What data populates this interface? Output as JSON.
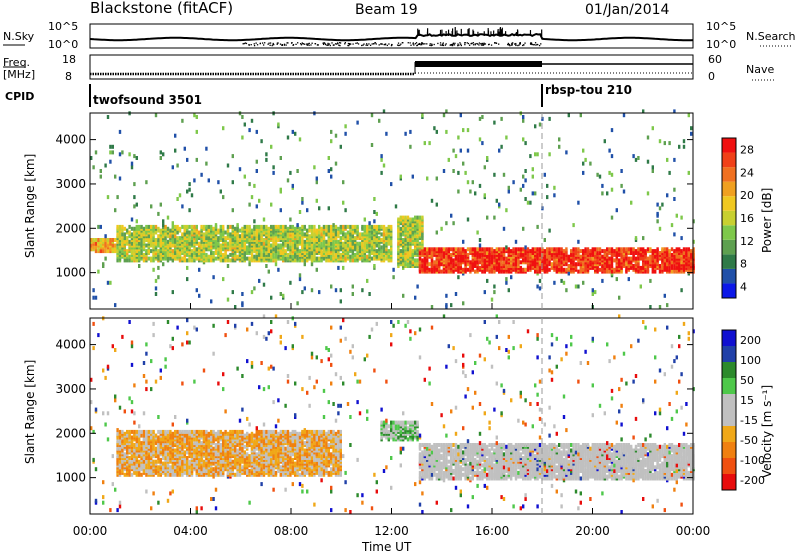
{
  "header": {
    "radar": "Blackstone (fitACF)",
    "beam": "Beam 19",
    "date": "01/Jan/2014"
  },
  "noise_panel": {
    "left_label": "N.Sky",
    "left_ticks": [
      "10^5",
      "10^0"
    ],
    "right_ticks": [
      "10^5",
      "10^0"
    ],
    "right_label": "N.Search"
  },
  "freq_panel": {
    "left_label_1": "Freq.",
    "left_label_2": "[MHz]",
    "left_ticks": [
      "18",
      "8"
    ],
    "right_ticks": [
      "60",
      "0"
    ],
    "right_label": "Nave"
  },
  "cpid_panel": {
    "label": "CPID",
    "programs": [
      {
        "name": "twofsound 3501",
        "start": "00:00"
      },
      {
        "name": "rbsp-tou 210",
        "start": "18:00"
      }
    ]
  },
  "chart_data": [
    {
      "type": "heatmap",
      "title": "",
      "ylabel": "Slant Range [km]",
      "xlabel": "",
      "x_range_hours": [
        0,
        24
      ],
      "ylim": [
        180,
        4600
      ],
      "yticks": [
        "4000",
        "3000",
        "2000",
        "1000"
      ],
      "colorbar": {
        "label": "Power [dB]",
        "tick_labels": [
          "28",
          "24",
          "20",
          "16",
          "12",
          "8",
          "4"
        ],
        "range": [
          0,
          30
        ],
        "colors": [
          "#0c18e8",
          "#2050a8",
          "#2f7a48",
          "#5ea050",
          "#7ec84a",
          "#c8d030",
          "#f0c820",
          "#f0a020",
          "#f07020",
          "#f04018",
          "#f01010"
        ]
      },
      "features": [
        {
          "name": "evening band 00-01 UT",
          "x": [
            0.0,
            1.0
          ],
          "range_km": [
            1400,
            1700
          ],
          "power_db": 20
        },
        {
          "name": "near range 01-12 UT",
          "x": [
            1.0,
            12.0
          ],
          "range_km": [
            1200,
            2000
          ],
          "power_db": 14
        },
        {
          "name": "descending echo 12.5-13 UT",
          "x": [
            12.2,
            13.2
          ],
          "range_km": [
            1100,
            2200
          ],
          "power_db": 14
        },
        {
          "name": "strong band 13-24 UT",
          "x": [
            13.0,
            24.0
          ],
          "range_km": [
            950,
            1500
          ],
          "power_db": 28
        }
      ]
    },
    {
      "type": "heatmap",
      "title": "",
      "ylabel": "Slant Range [km]",
      "xlabel": "Time UT",
      "x_range_hours": [
        0,
        24
      ],
      "ylim": [
        180,
        4600
      ],
      "yticks": [
        "4000",
        "3000",
        "2000",
        "1000"
      ],
      "xticks": [
        "00:00",
        "04:00",
        "08:00",
        "12:00",
        "16:00",
        "20:00",
        "00:00"
      ],
      "colorbar": {
        "label": "Velocity [m s⁻¹]",
        "tick_labels": [
          "200",
          "100",
          "50",
          "15",
          "-15",
          "-50",
          "-100",
          "-200"
        ],
        "range": [
          -250,
          250
        ],
        "colors": [
          "#e80c0c",
          "#f05010",
          "#f08010",
          "#f0a818",
          "#c0c0c0",
          "#c0c0c0",
          "#4ec84a",
          "#2c8a2c",
          "#2040a8",
          "#1010d0"
        ]
      },
      "features": [
        {
          "name": "westward flow 01-10 UT",
          "x": [
            1.0,
            10.0
          ],
          "range_km": [
            1000,
            2000
          ],
          "velocity": -80
        },
        {
          "name": "ground scatter 13-24 UT",
          "x": [
            13.0,
            24.0
          ],
          "range_km": [
            900,
            1700
          ],
          "velocity": 0
        },
        {
          "name": "positive flow near 12 UT",
          "x": [
            11.5,
            13.0
          ],
          "range_km": [
            1800,
            2200
          ],
          "velocity": 60
        }
      ]
    }
  ]
}
